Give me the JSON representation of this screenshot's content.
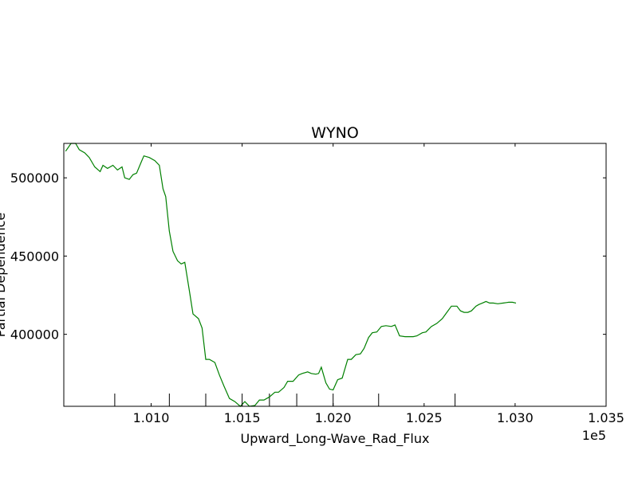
{
  "chart_data": {
    "type": "line",
    "title": "WYNO",
    "xlabel": "Upward_Long-Wave_Rad_Flux",
    "ylabel": "Partial Dependence",
    "x_offset_label": "1e5",
    "xlim": [
      100520,
      103500
    ],
    "ylim": [
      354000,
      522000
    ],
    "xticks": [
      101000,
      101500,
      102000,
      102500,
      103000,
      103500
    ],
    "xtick_labels": [
      "1.010",
      "1.015",
      "1.020",
      "1.025",
      "1.030",
      "1.035"
    ],
    "yticks": [
      400000,
      450000,
      500000
    ],
    "ytick_labels": [
      "400000",
      "450000",
      "500000"
    ],
    "rug_x": [
      100800,
      101100,
      101300,
      101500,
      101650,
      101800,
      102000,
      102250,
      102670
    ],
    "line_color": "#008000",
    "grid": false,
    "series": [
      {
        "name": "",
        "x": [
          100530,
          100560,
          100585,
          100605,
          100635,
          100660,
          100690,
          100720,
          100735,
          100760,
          100790,
          100815,
          100840,
          100855,
          100880,
          100900,
          100920,
          100945,
          100960,
          100990,
          101020,
          101045,
          101065,
          101080,
          101100,
          101120,
          101145,
          101165,
          101185,
          101210,
          101230,
          101260,
          101280,
          101300,
          101320,
          101350,
          101375,
          101400,
          101430,
          101460,
          101490,
          101515,
          101540,
          101570,
          101595,
          101620,
          101650,
          101680,
          101700,
          101730,
          101750,
          101780,
          101810,
          101830,
          101860,
          101880,
          101905,
          101920,
          101935,
          101960,
          101980,
          102000,
          102025,
          102050,
          102080,
          102100,
          102125,
          102150,
          102170,
          102195,
          102215,
          102240,
          102265,
          102290,
          102320,
          102340,
          102365,
          102395,
          102420,
          102440,
          102460,
          102490,
          102510,
          102540,
          102570,
          102600,
          102625,
          102650,
          102680,
          102700,
          102720,
          102740,
          102760,
          102785,
          102800,
          102820,
          102840,
          102860,
          102880,
          102905,
          102935,
          102965,
          102985,
          103005
        ],
        "y": [
          517000,
          522000,
          522000,
          518000,
          516000,
          513000,
          507000,
          504000,
          508000,
          506000,
          508000,
          505000,
          507000,
          500000,
          499000,
          502000,
          503000,
          510000,
          514000,
          513000,
          511000,
          508000,
          493000,
          488000,
          466000,
          453000,
          447000,
          445000,
          446000,
          428000,
          413000,
          410000,
          404000,
          384000,
          384000,
          382000,
          374000,
          367000,
          359000,
          357000,
          354000,
          357000,
          354000,
          354500,
          358000,
          358000,
          360000,
          363000,
          363000,
          366000,
          370000,
          370000,
          374000,
          375000,
          376000,
          375000,
          374500,
          375000,
          379000,
          369000,
          365000,
          364500,
          371000,
          372000,
          384000,
          384000,
          387000,
          387500,
          391000,
          398000,
          401000,
          401500,
          405000,
          405500,
          405000,
          406000,
          399000,
          398500,
          398500,
          398500,
          399000,
          401000,
          401500,
          405000,
          407000,
          410000,
          414000,
          418000,
          418000,
          415000,
          414000,
          414000,
          415000,
          418000,
          419000,
          420000,
          421000,
          420000,
          420000,
          419500,
          420000,
          420500,
          420500,
          420000
        ]
      }
    ]
  }
}
